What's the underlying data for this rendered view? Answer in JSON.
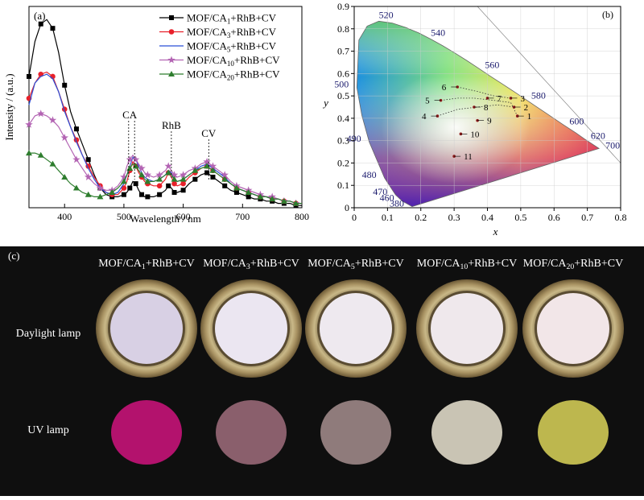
{
  "chart_data": [
    {
      "panel": "(a)",
      "type": "line",
      "xlabel": "Wavelength / nm",
      "ylabel": "Intensity / (a.u.)",
      "xlim": [
        340,
        800
      ],
      "xticks": [
        "400",
        "500",
        "600",
        "700",
        "800"
      ],
      "xtick_values": [
        400,
        500,
        600,
        700,
        800
      ],
      "grid": false,
      "legend_position": "top-right",
      "annotations": [
        {
          "text": "CA",
          "x": 518
        },
        {
          "text": "RhB",
          "x": 580
        },
        {
          "text": "CV",
          "x": 643
        }
      ],
      "x": [
        340,
        350,
        360,
        370,
        380,
        390,
        400,
        410,
        420,
        430,
        440,
        450,
        460,
        470,
        480,
        490,
        500,
        505,
        510,
        515,
        520,
        525,
        530,
        535,
        540,
        550,
        560,
        570,
        575,
        580,
        585,
        590,
        600,
        610,
        620,
        630,
        640,
        645,
        650,
        660,
        670,
        680,
        690,
        700,
        710,
        720,
        730,
        740,
        750,
        760,
        770,
        780,
        790,
        800
      ],
      "series": [
        {
          "name": "MOF/CA1+RhB+CV",
          "color": "#000000",
          "marker": "square",
          "values": [
            0.6,
            0.76,
            0.84,
            0.86,
            0.82,
            0.71,
            0.56,
            0.44,
            0.36,
            0.29,
            0.22,
            0.15,
            0.09,
            0.06,
            0.05,
            0.05,
            0.06,
            0.07,
            0.09,
            0.12,
            0.11,
            0.08,
            0.06,
            0.05,
            0.05,
            0.05,
            0.06,
            0.08,
            0.1,
            0.09,
            0.07,
            0.07,
            0.08,
            0.11,
            0.13,
            0.15,
            0.16,
            0.15,
            0.14,
            0.12,
            0.1,
            0.08,
            0.07,
            0.06,
            0.05,
            0.04,
            0.04,
            0.03,
            0.03,
            0.02,
            0.02,
            0.02,
            0.01,
            0.01
          ]
        },
        {
          "name": "MOF/CA3+RhB+CV",
          "color": "#e8202a",
          "marker": "circle",
          "values": [
            0.5,
            0.57,
            0.61,
            0.62,
            0.6,
            0.53,
            0.45,
            0.37,
            0.31,
            0.24,
            0.19,
            0.14,
            0.1,
            0.07,
            0.06,
            0.06,
            0.09,
            0.12,
            0.17,
            0.21,
            0.19,
            0.16,
            0.14,
            0.12,
            0.11,
            0.1,
            0.1,
            0.13,
            0.16,
            0.14,
            0.11,
            0.1,
            0.11,
            0.14,
            0.16,
            0.18,
            0.19,
            0.18,
            0.17,
            0.15,
            0.13,
            0.11,
            0.09,
            0.08,
            0.07,
            0.06,
            0.05,
            0.05,
            0.04,
            0.04,
            0.03,
            0.03,
            0.02,
            0.02
          ]
        },
        {
          "name": "MOF/CA5+RhB+CV",
          "color": "#2b4fd6",
          "marker": "none",
          "values": [
            0.47,
            0.57,
            0.6,
            0.61,
            0.59,
            0.53,
            0.44,
            0.37,
            0.3,
            0.24,
            0.18,
            0.13,
            0.09,
            0.07,
            0.06,
            0.07,
            0.11,
            0.15,
            0.19,
            0.23,
            0.22,
            0.19,
            0.16,
            0.14,
            0.13,
            0.12,
            0.13,
            0.15,
            0.17,
            0.16,
            0.13,
            0.12,
            0.13,
            0.15,
            0.17,
            0.19,
            0.2,
            0.19,
            0.18,
            0.16,
            0.14,
            0.11,
            0.09,
            0.08,
            0.07,
            0.06,
            0.05,
            0.05,
            0.04,
            0.04,
            0.03,
            0.03,
            0.02,
            0.02
          ]
        },
        {
          "name": "MOF/CA10+RhB+CV",
          "color": "#b364b3",
          "marker": "star",
          "values": [
            0.38,
            0.42,
            0.43,
            0.42,
            0.4,
            0.37,
            0.32,
            0.27,
            0.22,
            0.18,
            0.14,
            0.11,
            0.09,
            0.08,
            0.08,
            0.1,
            0.14,
            0.19,
            0.22,
            0.24,
            0.22,
            0.2,
            0.18,
            0.16,
            0.15,
            0.14,
            0.15,
            0.17,
            0.19,
            0.17,
            0.15,
            0.14,
            0.15,
            0.17,
            0.18,
            0.2,
            0.21,
            0.2,
            0.19,
            0.17,
            0.15,
            0.12,
            0.1,
            0.09,
            0.08,
            0.07,
            0.06,
            0.05,
            0.05,
            0.04,
            0.03,
            0.03,
            0.02,
            0.02
          ]
        },
        {
          "name": "MOF/CA20+RhB+CV",
          "color": "#2e7d2e",
          "marker": "triangle",
          "values": [
            0.25,
            0.25,
            0.24,
            0.22,
            0.2,
            0.17,
            0.14,
            0.11,
            0.09,
            0.07,
            0.06,
            0.05,
            0.05,
            0.06,
            0.07,
            0.09,
            0.12,
            0.15,
            0.18,
            0.2,
            0.19,
            0.17,
            0.15,
            0.13,
            0.12,
            0.12,
            0.13,
            0.15,
            0.16,
            0.15,
            0.13,
            0.12,
            0.13,
            0.15,
            0.17,
            0.18,
            0.19,
            0.18,
            0.17,
            0.15,
            0.13,
            0.11,
            0.09,
            0.08,
            0.07,
            0.06,
            0.05,
            0.05,
            0.04,
            0.04,
            0.03,
            0.03,
            0.02,
            0.02
          ]
        }
      ]
    },
    {
      "panel": "(b)",
      "type": "scatter",
      "xlabel": "x",
      "ylabel": "y",
      "xlim": [
        0,
        0.8
      ],
      "ylim": [
        0,
        0.9
      ],
      "xticks": [
        "0",
        "0.1",
        "0.2",
        "0.3",
        "0.4",
        "0.5",
        "0.6",
        "0.7",
        "0.8"
      ],
      "yticks": [
        "0",
        "0.1",
        "0.2",
        "0.3",
        "0.4",
        "0.5",
        "0.6",
        "0.7",
        "0.8",
        "0.9"
      ],
      "wavelength_labels": [
        {
          "text": "520",
          "x": 0.074,
          "y": 0.834
        },
        {
          "text": "540",
          "x": 0.23,
          "y": 0.754
        },
        {
          "text": "560",
          "x": 0.373,
          "y": 0.624
        },
        {
          "text": "580",
          "x": 0.512,
          "y": 0.487
        },
        {
          "text": "600",
          "x": 0.627,
          "y": 0.372
        },
        {
          "text": "620",
          "x": 0.691,
          "y": 0.308
        },
        {
          "text": "700",
          "x": 0.735,
          "y": 0.265
        },
        {
          "text": "500",
          "x": 0.008,
          "y": 0.538
        },
        {
          "text": "490",
          "x": 0.045,
          "y": 0.295
        },
        {
          "text": "480",
          "x": 0.091,
          "y": 0.133
        },
        {
          "text": "470",
          "x": 0.124,
          "y": 0.058
        },
        {
          "text": "460",
          "x": 0.144,
          "y": 0.03
        },
        {
          "text": "380",
          "x": 0.174,
          "y": 0.005
        }
      ],
      "points": [
        {
          "label": "1",
          "x": 0.49,
          "y": 0.41
        },
        {
          "label": "2",
          "x": 0.48,
          "y": 0.45
        },
        {
          "label": "3",
          "x": 0.47,
          "y": 0.49
        },
        {
          "label": "4",
          "x": 0.25,
          "y": 0.41
        },
        {
          "label": "5",
          "x": 0.26,
          "y": 0.48
        },
        {
          "label": "6",
          "x": 0.31,
          "y": 0.54
        },
        {
          "label": "7",
          "x": 0.4,
          "y": 0.49
        },
        {
          "label": "8",
          "x": 0.36,
          "y": 0.45
        },
        {
          "label": "9",
          "x": 0.37,
          "y": 0.39
        },
        {
          "label": "10",
          "x": 0.32,
          "y": 0.33
        },
        {
          "label": "11",
          "x": 0.3,
          "y": 0.23
        }
      ]
    }
  ],
  "photo_panel": {
    "label": "(c)",
    "columns": [
      "MOF/CA1+RhB+CV",
      "MOF/CA3+RhB+CV",
      "MOF/CA5+RhB+CV",
      "MOF/CA10+RhB+CV",
      "MOF/CA20+RhB+CV"
    ],
    "rows": [
      "Daylight lamp",
      "UV lamp"
    ],
    "daylight_powder_colors": [
      "#d8d0e4",
      "#ebe6f1",
      "#eee9ef",
      "#efe8ec",
      "#f2e6e8"
    ],
    "uv_powder_colors": [
      "#b3126d",
      "#8a5f6c",
      "#8f7b7b",
      "#c9c4b4",
      "#bdb74e"
    ]
  }
}
